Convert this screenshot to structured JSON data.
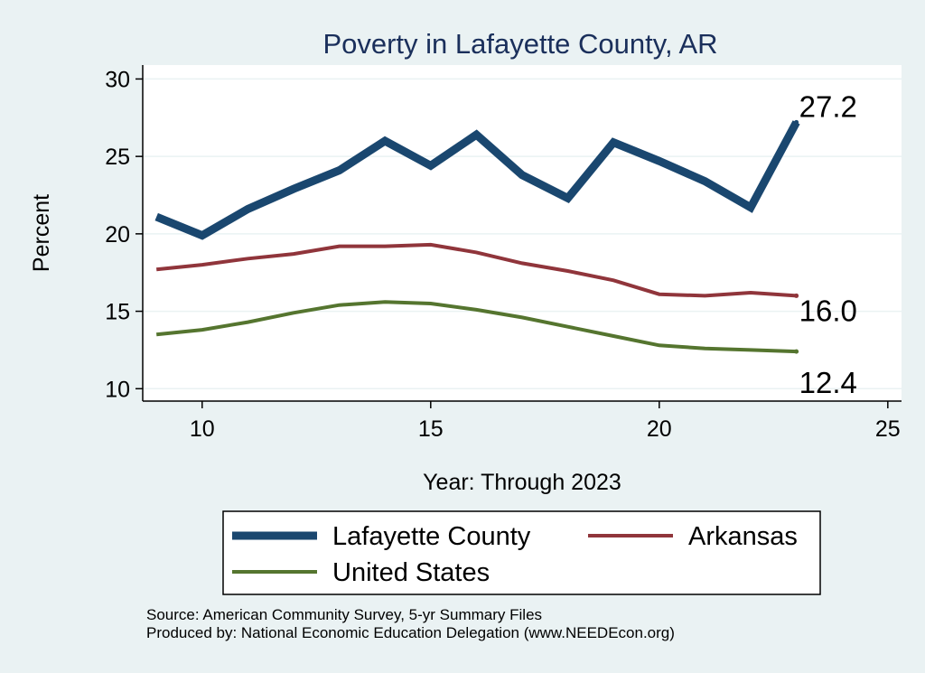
{
  "chart_data": {
    "type": "line",
    "title": "Poverty in Lafayette County, AR",
    "xlabel": "Year: Through 2023",
    "ylabel": "Percent",
    "xlim": [
      8.7,
      25.3
    ],
    "ylim": [
      9.2,
      30.9
    ],
    "xticks": [
      10,
      15,
      20,
      25
    ],
    "yticks": [
      10,
      15,
      20,
      25,
      30
    ],
    "grid": true,
    "legend_position": "bottom",
    "x": [
      9,
      10,
      11,
      12,
      13,
      14,
      15,
      16,
      17,
      18,
      19,
      20,
      21,
      22,
      23
    ],
    "series": [
      {
        "name": "Lafayette County",
        "color": "#1a476f",
        "width": 9,
        "values": [
          21.1,
          19.9,
          21.6,
          22.9,
          24.1,
          26.0,
          24.4,
          26.4,
          23.8,
          22.3,
          25.9,
          24.7,
          23.4,
          21.7,
          27.2
        ],
        "end_label": "27.2"
      },
      {
        "name": "Arkansas",
        "color": "#90353b",
        "width": 4,
        "values": [
          17.7,
          18.0,
          18.4,
          18.7,
          19.2,
          19.2,
          19.3,
          18.8,
          18.1,
          17.6,
          17.0,
          16.1,
          16.0,
          16.2,
          16.0
        ],
        "end_label": "16.0"
      },
      {
        "name": "United States",
        "color": "#55752f",
        "width": 4,
        "values": [
          13.5,
          13.8,
          14.3,
          14.9,
          15.4,
          15.6,
          15.5,
          15.1,
          14.6,
          14.0,
          13.4,
          12.8,
          12.6,
          12.5,
          12.4
        ],
        "end_label": "12.4"
      }
    ]
  },
  "source_lines": [
    "Source: American Community Survey, 5-yr Summary Files",
    "Produced by: National Economic Education Delegation (www.NEEDEcon.org)"
  ]
}
